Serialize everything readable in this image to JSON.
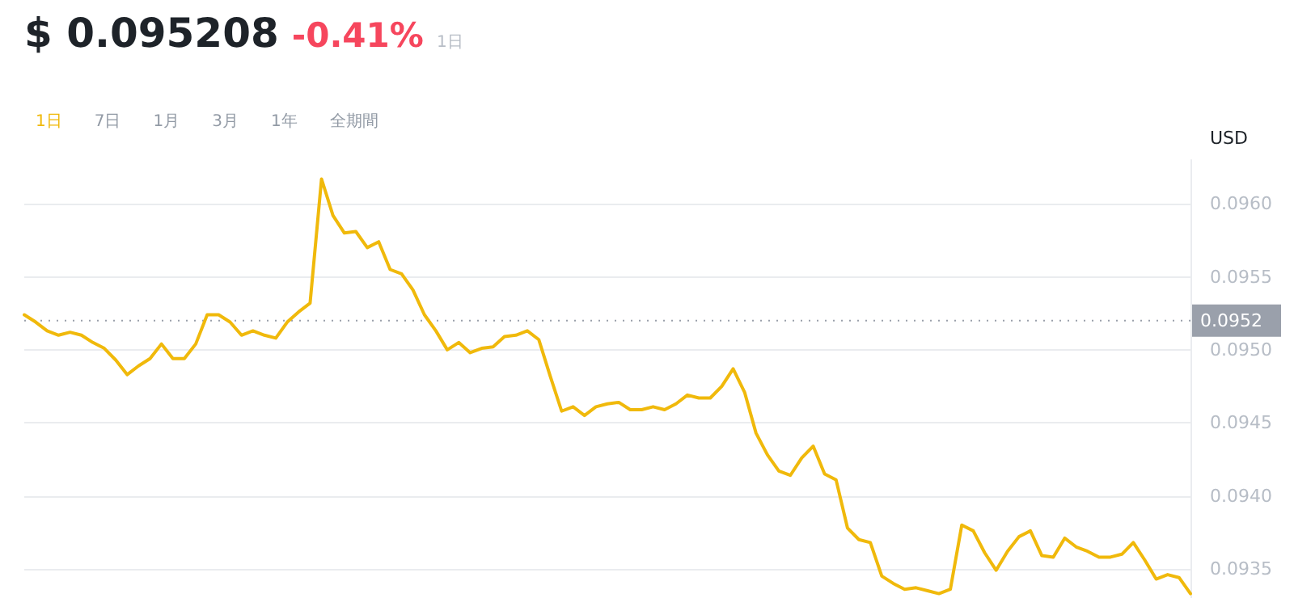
{
  "chart_data": {
    "type": "line",
    "title": "$ 0.095208",
    "subtitle": "-0.41%",
    "annotations": [
      "1日",
      "1日",
      "7日",
      "1月",
      "3月",
      "1年",
      "全期間"
    ],
    "ylabel": "USD",
    "color": "#f0b90b",
    "grid": "y",
    "line_style": "solid",
    "tick_labels": "y",
    "ylim": [
      0.0933,
      0.0963
    ],
    "yticks": [
      {
        "value": 0.0935,
        "label": "0.0935"
      },
      {
        "value": 0.094,
        "label": "0.0940"
      },
      {
        "value": 0.0945,
        "label": "0.0945"
      },
      {
        "value": 0.095,
        "label": "0.0950"
      },
      {
        "value": 0.0955,
        "label": "0.0955"
      },
      {
        "value": 0.096,
        "label": "0.0960"
      }
    ],
    "ref_lines": [
      {
        "axis": "y",
        "value": 0.0952,
        "label": "0.0952",
        "color": "#9aa0ab",
        "line_style": "dotted"
      }
    ],
    "categories": [
      null,
      null,
      null,
      null,
      null,
      null,
      null,
      null,
      null,
      null,
      null,
      null,
      null,
      null,
      null,
      null,
      null,
      null,
      null,
      null,
      null,
      null,
      null,
      null,
      null,
      null,
      null,
      null,
      null,
      null,
      null,
      null,
      null,
      null,
      null,
      null,
      null,
      null,
      null,
      null,
      null,
      null,
      null,
      null,
      null,
      null,
      null,
      null,
      null,
      null,
      null,
      null,
      null,
      null,
      null,
      null,
      null,
      null,
      null,
      null,
      null,
      null,
      null,
      null,
      null,
      null,
      null,
      null,
      null,
      null,
      null,
      null,
      null,
      null,
      null,
      null,
      null,
      null,
      null,
      null,
      null,
      null,
      null,
      null,
      null,
      null,
      null,
      null,
      null,
      null,
      null,
      null,
      null,
      null,
      null,
      null,
      null,
      null,
      null,
      null,
      null,
      null,
      null
    ],
    "values": [
      0.09524,
      0.09519,
      0.09513,
      0.0951,
      0.09512,
      0.0951,
      0.09505,
      0.09501,
      0.09493,
      0.09483,
      0.09489,
      0.09494,
      0.09504,
      0.09494,
      0.09494,
      0.09504,
      0.09524,
      0.09524,
      0.09519,
      0.0951,
      0.09513,
      0.0951,
      0.09508,
      0.09519,
      0.09526,
      0.09532,
      0.09617,
      0.09592,
      0.0958,
      0.09581,
      0.0957,
      0.09574,
      0.09555,
      0.09552,
      0.09541,
      0.09524,
      0.09513,
      0.095,
      0.09505,
      0.09498,
      0.09501,
      0.09502,
      0.09509,
      0.0951,
      0.09513,
      0.09507,
      0.09482,
      0.09458,
      0.09461,
      0.09455,
      0.09461,
      0.09463,
      0.09464,
      0.09459,
      0.09459,
      0.09461,
      0.09459,
      0.09463,
      0.09469,
      0.09467,
      0.09467,
      0.09475,
      0.09487,
      0.09471,
      0.09443,
      0.09428,
      0.09417,
      0.09414,
      0.09426,
      0.09434,
      0.09415,
      0.09411,
      0.09378,
      0.0937,
      0.09368,
      0.09345,
      0.0934,
      0.09336,
      0.09337,
      0.09335,
      0.09333,
      0.09336,
      0.0938,
      0.09376,
      0.09361,
      0.09349,
      0.09362,
      0.09372,
      0.09376,
      0.09359,
      0.09358,
      0.09371,
      0.09365,
      0.09362,
      0.09358,
      0.09358,
      0.0936,
      0.09368,
      0.09356,
      0.09343,
      0.09346,
      0.09344,
      0.09333
    ]
  }
}
